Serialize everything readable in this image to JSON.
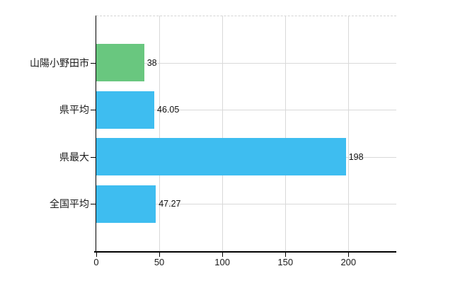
{
  "chart_data": {
    "type": "bar",
    "orientation": "horizontal",
    "title": "",
    "xlabel": "",
    "ylabel": "",
    "categories": [
      "山陽小野田市",
      "県平均",
      "県最大",
      "全国平均"
    ],
    "values": [
      38,
      46.05,
      198,
      47.27
    ],
    "value_labels": [
      "38",
      "46.05",
      "198",
      "47.27"
    ],
    "bar_colors": [
      "#69c77f",
      "#3ebdf0",
      "#3ebdf0",
      "#3ebdf0"
    ],
    "xlim": [
      0,
      238
    ],
    "x_ticks": [
      0,
      50,
      100,
      150,
      200
    ],
    "x_tick_labels": [
      "0",
      "50",
      "100",
      "150",
      "200"
    ],
    "grid": true,
    "legend": null
  },
  "colors": {
    "background": "#ffffff",
    "gridline": "#d9d9d9",
    "axis": "#000000",
    "text": "#1a1a1a",
    "bar_blue": "#3ebdf0",
    "bar_green": "#69c77f"
  }
}
